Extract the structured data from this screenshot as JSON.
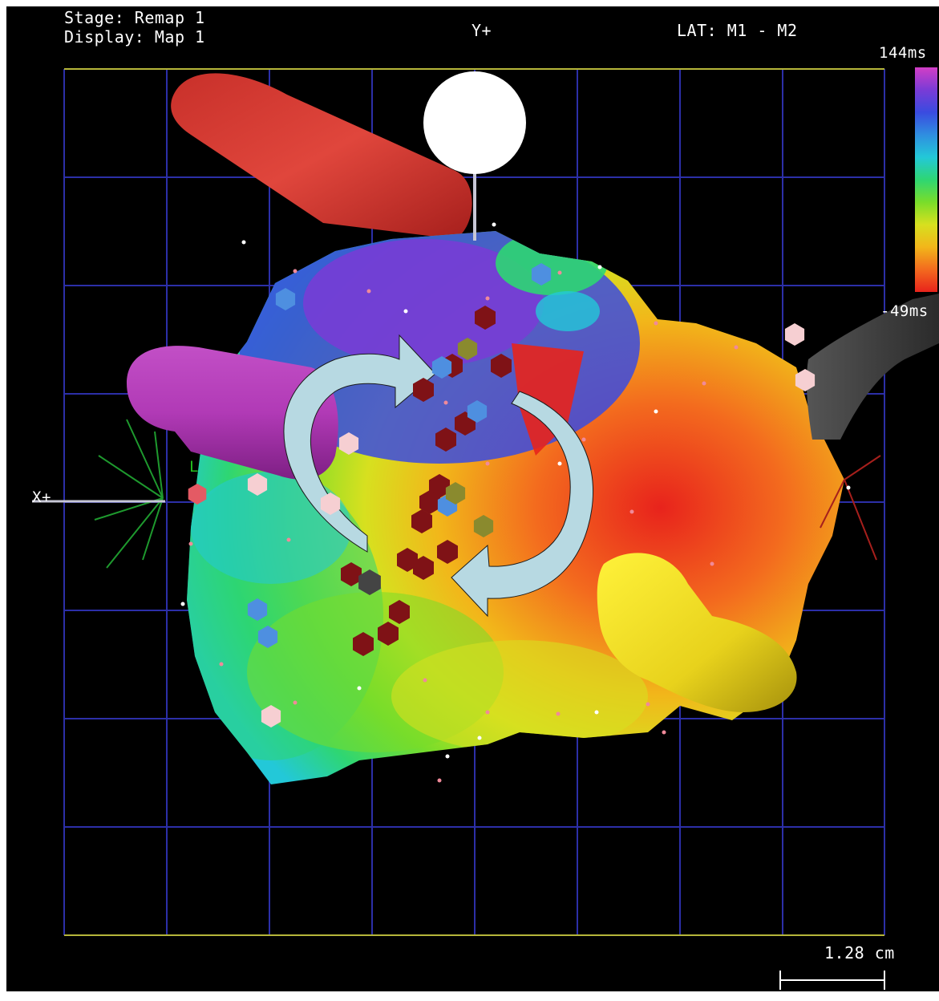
{
  "header": {
    "stage": "Stage: Remap 1",
    "display": "Display: Map 1",
    "axis_y": "Y+",
    "lat": "LAT: M1 - M2"
  },
  "color_scale": {
    "max_label": "144ms",
    "min_label": "-49ms",
    "gradient_top_to_bottom": [
      "#d23ec6",
      "#7a3bd6",
      "#3a4be0",
      "#2f8ee0",
      "#23c8d8",
      "#2ed673",
      "#79dd2a",
      "#d7e01f",
      "#f2b61a",
      "#f36a1e",
      "#e8231c"
    ]
  },
  "axes": {
    "x_label": "X+",
    "l_label": "L"
  },
  "scale_bar": {
    "length_label": "1.28 cm"
  },
  "colors": {
    "grid": "#2c2fa8",
    "frame": "#b6b63a",
    "activation_arrow": "#b7d9e2",
    "ablation_lesion": "#7f1216",
    "sample_point_blue": "#4e8fe0",
    "sample_point_olive": "#8a8a2e",
    "sample_point_pink": "#f6cfd2"
  }
}
